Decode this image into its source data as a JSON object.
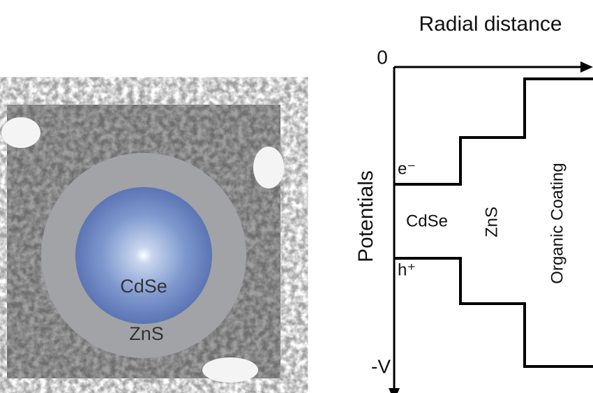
{
  "nanocrystal": {
    "core_label": "CdSe",
    "shell_label": "ZnS"
  },
  "diagram": {
    "x_axis_label": "Radial distance",
    "origin_label": "0",
    "y_axis_label": "Potentials",
    "y_end_label": "-V",
    "electron_label": "e⁻",
    "hole_label": "h⁺",
    "core_region": "CdSe",
    "shell_region": "ZnS",
    "coating_region": "Organic Coating"
  }
}
